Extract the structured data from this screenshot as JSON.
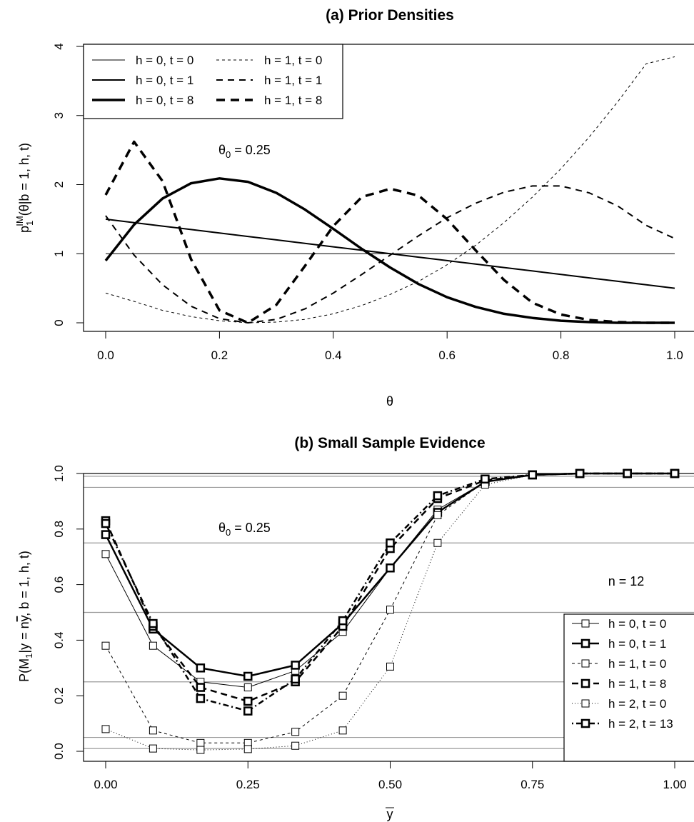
{
  "chart_data": [
    {
      "type": "line",
      "title": "(a) Prior Densities",
      "xlabel": "θ",
      "ylabel": "p1IM(θ|b = 1, h, t)",
      "ylabel_main": "p",
      "ylabel_sub": "1",
      "ylabel_sup": "IM",
      "ylabel_rest": "(θ|b = 1, h, t)",
      "xlim": [
        0,
        1
      ],
      "ylim": [
        0,
        4
      ],
      "x_ticks": [
        "0.0",
        "0.2",
        "0.4",
        "0.6",
        "0.8",
        "1.0"
      ],
      "y_ticks": [
        "0",
        "1",
        "2",
        "3",
        "4"
      ],
      "grid": false,
      "legend_position": "top-left",
      "annotation": "θ0 = 0.25",
      "annotation_main": "θ",
      "annotation_sub": "0",
      "annotation_rest": " = 0.25",
      "x": [
        0,
        0.05,
        0.1,
        0.15,
        0.2,
        0.25,
        0.3,
        0.35,
        0.4,
        0.45,
        0.5,
        0.55,
        0.6,
        0.65,
        0.7,
        0.75,
        0.8,
        0.85,
        0.9,
        0.95,
        1.0
      ],
      "series": [
        {
          "name": "h = 0, t = 0",
          "style": "thin-solid",
          "values": [
            1,
            1,
            1,
            1,
            1,
            1,
            1,
            1,
            1,
            1,
            1,
            1,
            1,
            1,
            1,
            1,
            1,
            1,
            1,
            1,
            1
          ]
        },
        {
          "name": "h = 0, t = 1",
          "style": "medium-solid",
          "values": [
            1.5,
            1.45,
            1.4,
            1.35,
            1.3,
            1.25,
            1.2,
            1.15,
            1.1,
            1.05,
            1.0,
            0.95,
            0.9,
            0.85,
            0.8,
            0.75,
            0.7,
            0.65,
            0.6,
            0.55,
            0.5
          ]
        },
        {
          "name": "h = 0, t = 8",
          "style": "thick-solid",
          "values": [
            0.9,
            1.42,
            1.8,
            2.02,
            2.09,
            2.04,
            1.88,
            1.64,
            1.36,
            1.07,
            0.8,
            0.56,
            0.37,
            0.23,
            0.13,
            0.07,
            0.03,
            0.01,
            0.0,
            0.0,
            0.0
          ]
        },
        {
          "name": "h = 1, t = 0",
          "style": "thin-dash",
          "values": [
            0.43,
            0.31,
            0.18,
            0.09,
            0.03,
            0.0,
            0.01,
            0.05,
            0.13,
            0.25,
            0.41,
            0.6,
            0.84,
            1.12,
            1.45,
            1.82,
            2.23,
            2.69,
            3.2,
            3.75,
            3.85
          ]
        },
        {
          "name": "h = 1, t = 1",
          "style": "medium-dash",
          "values": [
            1.55,
            0.98,
            0.55,
            0.24,
            0.06,
            0.0,
            0.05,
            0.2,
            0.43,
            0.7,
            0.98,
            1.26,
            1.52,
            1.73,
            1.89,
            1.98,
            1.98,
            1.88,
            1.69,
            1.41,
            1.22
          ]
        },
        {
          "name": "h = 1, t = 8",
          "style": "thick-dash",
          "values": [
            1.85,
            2.62,
            2.05,
            0.92,
            0.18,
            0.0,
            0.26,
            0.82,
            1.4,
            1.82,
            1.94,
            1.84,
            1.5,
            1.05,
            0.62,
            0.29,
            0.12,
            0.04,
            0.01,
            0.0,
            0.0
          ]
        }
      ]
    },
    {
      "type": "line",
      "title": "(b) Small Sample Evidence",
      "xlabel": "y",
      "ylabel": "P(M1|y = ny, b = 1, h, t)",
      "ylabel_a": "P(M",
      "ylabel_sub": "1",
      "ylabel_b": "|y = n",
      "ylabel_bar": "y",
      "ylabel_c": ", b = 1, h, t)",
      "xlim": [
        0,
        1
      ],
      "ylim": [
        0,
        1
      ],
      "x_ticks": [
        "0.00",
        "0.25",
        "0.50",
        "0.75",
        "1.00"
      ],
      "y_ticks": [
        "0.0",
        "0.2",
        "0.4",
        "0.6",
        "0.8",
        "1.0"
      ],
      "reference_lines": [
        0.01,
        0.05,
        0.25,
        0.5,
        0.75,
        0.95,
        0.99
      ],
      "reference_line_color": "#9a9a9a",
      "annotation_main": "θ",
      "annotation_sub": "0",
      "annotation_rest": " = 0.25",
      "n_label": "n = 12",
      "legend_position": "bottom-right",
      "x": [
        0,
        0.0833,
        0.1667,
        0.25,
        0.3333,
        0.4167,
        0.5,
        0.5833,
        0.6667,
        0.75,
        0.8333,
        0.9167,
        1.0
      ],
      "series": [
        {
          "name": "h = 0, t = 0",
          "style": "thin-solid",
          "values": [
            0.71,
            0.38,
            0.25,
            0.23,
            0.29,
            0.43,
            0.66,
            0.87,
            0.97,
            0.995,
            1.0,
            1.0,
            1.0
          ]
        },
        {
          "name": "h = 0, t = 1",
          "style": "thick-solid",
          "values": [
            0.78,
            0.44,
            0.3,
            0.27,
            0.31,
            0.46,
            0.66,
            0.86,
            0.97,
            0.995,
            1.0,
            1.0,
            1.0
          ]
        },
        {
          "name": "h = 1, t = 0",
          "style": "thin-dash",
          "values": [
            0.38,
            0.075,
            0.03,
            0.03,
            0.07,
            0.2,
            0.51,
            0.85,
            0.97,
            0.995,
            1.0,
            1.0,
            1.0
          ]
        },
        {
          "name": "h = 1, t = 8",
          "style": "thick-dash",
          "values": [
            0.83,
            0.45,
            0.23,
            0.18,
            0.25,
            0.45,
            0.73,
            0.91,
            0.975,
            0.995,
            1.0,
            1.0,
            1.0
          ]
        },
        {
          "name": "h = 2, t = 0",
          "style": "thin-dot",
          "values": [
            0.08,
            0.01,
            0.005,
            0.008,
            0.02,
            0.075,
            0.305,
            0.75,
            0.96,
            0.995,
            1.0,
            1.0,
            1.0
          ]
        },
        {
          "name": "h = 2, t = 13",
          "style": "thick-dotdash",
          "values": [
            0.82,
            0.46,
            0.19,
            0.145,
            0.26,
            0.47,
            0.75,
            0.92,
            0.98,
            0.995,
            1.0,
            1.0,
            1.0
          ]
        }
      ]
    }
  ]
}
